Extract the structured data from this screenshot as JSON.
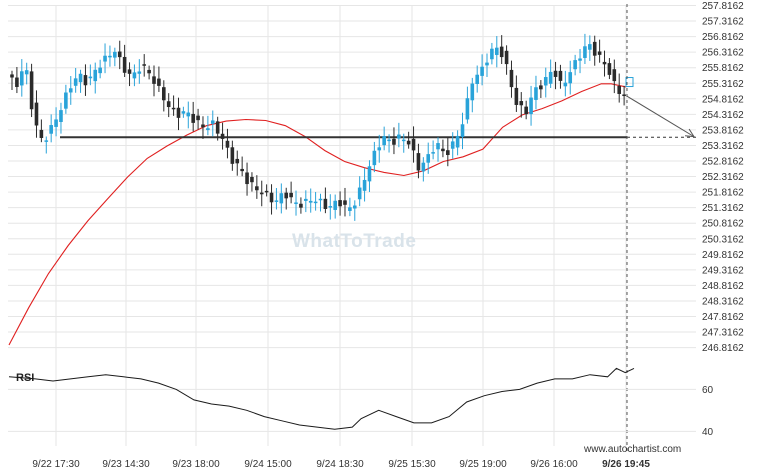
{
  "chart_data": {
    "type": "candlestick",
    "y_axis": {
      "ticks": [
        "257.8162",
        "257.3162",
        "256.8162",
        "256.3162",
        "255.8162",
        "255.3162",
        "254.8162",
        "254.3162",
        "253.8162",
        "253.3162",
        "252.8162",
        "252.3162",
        "251.8162",
        "251.3162",
        "250.8162",
        "250.3162",
        "249.8162",
        "249.3162",
        "248.8162",
        "248.3162",
        "247.8162",
        "247.3162",
        "246.8162"
      ],
      "range": [
        246.45,
        257.95
      ]
    },
    "x_axis": {
      "ticks": [
        "9/22 17:30",
        "9/23 14:30",
        "9/23 18:00",
        "9/24 15:00",
        "9/24 18:30",
        "9/25 15:30",
        "9/25 19:00",
        "9/26 16:00",
        "9/26 19:45"
      ],
      "last_tick_bold": true
    },
    "candle_count": 126,
    "support_level": 253.58,
    "current_time_index": 122,
    "projection": {
      "from_index": 122,
      "from_price": 254.9,
      "to_index": 135,
      "to_price": 253.6
    },
    "colors": {
      "up": "#29a3d9",
      "down": "#2b2b2b",
      "ma": "#e02020",
      "level": "#333333",
      "grid": "#e6e6e6",
      "rsi": "#1a1a1a"
    },
    "moving_average": [
      {
        "i": 0,
        "v": 246.9
      },
      {
        "i": 4,
        "v": 248.1
      },
      {
        "i": 8,
        "v": 249.2
      },
      {
        "i": 12,
        "v": 250.1
      },
      {
        "i": 16,
        "v": 250.9
      },
      {
        "i": 20,
        "v": 251.6
      },
      {
        "i": 24,
        "v": 252.3
      },
      {
        "i": 28,
        "v": 252.9
      },
      {
        "i": 32,
        "v": 253.3
      },
      {
        "i": 36,
        "v": 253.65
      },
      {
        "i": 40,
        "v": 253.95
      },
      {
        "i": 44,
        "v": 254.1
      },
      {
        "i": 48,
        "v": 254.15
      },
      {
        "i": 52,
        "v": 254.12
      },
      {
        "i": 56,
        "v": 253.95
      },
      {
        "i": 60,
        "v": 253.6
      },
      {
        "i": 64,
        "v": 253.15
      },
      {
        "i": 68,
        "v": 252.8
      },
      {
        "i": 72,
        "v": 252.6
      },
      {
        "i": 76,
        "v": 252.45
      },
      {
        "i": 80,
        "v": 252.35
      },
      {
        "i": 84,
        "v": 252.5
      },
      {
        "i": 88,
        "v": 252.8
      },
      {
        "i": 92,
        "v": 252.95
      },
      {
        "i": 96,
        "v": 253.2
      },
      {
        "i": 100,
        "v": 253.9
      },
      {
        "i": 104,
        "v": 254.3
      },
      {
        "i": 108,
        "v": 254.5
      },
      {
        "i": 112,
        "v": 254.75
      },
      {
        "i": 116,
        "v": 255.05
      },
      {
        "i": 120,
        "v": 255.3
      },
      {
        "i": 122,
        "v": 255.3
      },
      {
        "i": 125,
        "v": 255.2
      }
    ],
    "anchors": [
      {
        "i": 0,
        "p": 255.6
      },
      {
        "i": 2,
        "p": 255.2
      },
      {
        "i": 4,
        "p": 256.0
      },
      {
        "i": 6,
        "p": 254.1
      },
      {
        "i": 8,
        "p": 253.4
      },
      {
        "i": 10,
        "p": 253.9
      },
      {
        "i": 12,
        "p": 254.5
      },
      {
        "i": 14,
        "p": 255.2
      },
      {
        "i": 16,
        "p": 255.6
      },
      {
        "i": 18,
        "p": 255.3
      },
      {
        "i": 20,
        "p": 255.8
      },
      {
        "i": 22,
        "p": 256.1
      },
      {
        "i": 24,
        "p": 256.4
      },
      {
        "i": 26,
        "p": 255.8
      },
      {
        "i": 28,
        "p": 255.5
      },
      {
        "i": 30,
        "p": 255.9
      },
      {
        "i": 32,
        "p": 255.6
      },
      {
        "i": 34,
        "p": 255.1
      },
      {
        "i": 36,
        "p": 254.6
      },
      {
        "i": 38,
        "p": 254.3
      },
      {
        "i": 40,
        "p": 254.4
      },
      {
        "i": 42,
        "p": 254.1
      },
      {
        "i": 44,
        "p": 253.9
      },
      {
        "i": 46,
        "p": 254.0
      },
      {
        "i": 48,
        "p": 253.6
      },
      {
        "i": 50,
        "p": 252.9
      },
      {
        "i": 52,
        "p": 252.6
      },
      {
        "i": 54,
        "p": 252.1
      },
      {
        "i": 56,
        "p": 251.9
      },
      {
        "i": 58,
        "p": 251.7
      },
      {
        "i": 60,
        "p": 251.5
      },
      {
        "i": 62,
        "p": 251.8
      },
      {
        "i": 64,
        "p": 251.5
      },
      {
        "i": 66,
        "p": 251.4
      },
      {
        "i": 68,
        "p": 251.6
      },
      {
        "i": 70,
        "p": 251.5
      },
      {
        "i": 72,
        "p": 251.3
      },
      {
        "i": 74,
        "p": 251.55
      },
      {
        "i": 76,
        "p": 251.25
      },
      {
        "i": 78,
        "p": 251.5
      },
      {
        "i": 80,
        "p": 252.3
      },
      {
        "i": 82,
        "p": 253.0
      },
      {
        "i": 84,
        "p": 253.6
      },
      {
        "i": 86,
        "p": 253.4
      },
      {
        "i": 88,
        "p": 253.6
      },
      {
        "i": 90,
        "p": 253.4
      },
      {
        "i": 92,
        "p": 252.6
      },
      {
        "i": 94,
        "p": 252.9
      },
      {
        "i": 96,
        "p": 253.4
      },
      {
        "i": 98,
        "p": 253.0
      },
      {
        "i": 100,
        "p": 253.4
      },
      {
        "i": 102,
        "p": 254.1
      },
      {
        "i": 104,
        "p": 255.4
      },
      {
        "i": 106,
        "p": 255.7
      },
      {
        "i": 108,
        "p": 256.3
      },
      {
        "i": 110,
        "p": 256.5
      },
      {
        "i": 112,
        "p": 255.7
      },
      {
        "i": 114,
        "p": 254.6
      },
      {
        "i": 116,
        "p": 254.4
      },
      {
        "i": 118,
        "p": 255.1
      },
      {
        "i": 120,
        "p": 255.3
      },
      {
        "i": 122,
        "p": 255.8
      },
      {
        "i": 124,
        "p": 255.2
      },
      {
        "i": 126,
        "p": 255.7
      },
      {
        "i": 128,
        "p": 256.2
      },
      {
        "i": 130,
        "p": 256.6
      },
      {
        "i": 132,
        "p": 256.2
      },
      {
        "i": 134,
        "p": 255.9
      },
      {
        "i": 136,
        "p": 255.2
      },
      {
        "i": 138,
        "p": 254.9
      }
    ],
    "rsi": {
      "label": "RSI",
      "ticks": [
        "60",
        "40"
      ],
      "range": [
        33,
        74
      ],
      "points": [
        {
          "i": 0,
          "v": 66
        },
        {
          "i": 6,
          "v": 65
        },
        {
          "i": 10,
          "v": 64
        },
        {
          "i": 14,
          "v": 65
        },
        {
          "i": 18,
          "v": 66
        },
        {
          "i": 22,
          "v": 67
        },
        {
          "i": 26,
          "v": 66
        },
        {
          "i": 30,
          "v": 65
        },
        {
          "i": 34,
          "v": 63
        },
        {
          "i": 38,
          "v": 60
        },
        {
          "i": 42,
          "v": 55
        },
        {
          "i": 46,
          "v": 53
        },
        {
          "i": 50,
          "v": 52
        },
        {
          "i": 54,
          "v": 50
        },
        {
          "i": 58,
          "v": 47
        },
        {
          "i": 62,
          "v": 45
        },
        {
          "i": 66,
          "v": 43
        },
        {
          "i": 70,
          "v": 42
        },
        {
          "i": 74,
          "v": 41
        },
        {
          "i": 78,
          "v": 42
        },
        {
          "i": 80,
          "v": 46
        },
        {
          "i": 84,
          "v": 50
        },
        {
          "i": 88,
          "v": 47
        },
        {
          "i": 92,
          "v": 44
        },
        {
          "i": 96,
          "v": 44
        },
        {
          "i": 100,
          "v": 47
        },
        {
          "i": 104,
          "v": 54
        },
        {
          "i": 108,
          "v": 57
        },
        {
          "i": 112,
          "v": 59
        },
        {
          "i": 116,
          "v": 60
        },
        {
          "i": 120,
          "v": 63
        },
        {
          "i": 124,
          "v": 65
        },
        {
          "i": 128,
          "v": 65
        },
        {
          "i": 132,
          "v": 67
        },
        {
          "i": 136,
          "v": 66
        },
        {
          "i": 138,
          "v": 70
        },
        {
          "i": 140,
          "v": 68
        },
        {
          "i": 142,
          "v": 70
        }
      ]
    }
  },
  "watermark": "WhatToTrade",
  "credit": "www.autochartist.com"
}
